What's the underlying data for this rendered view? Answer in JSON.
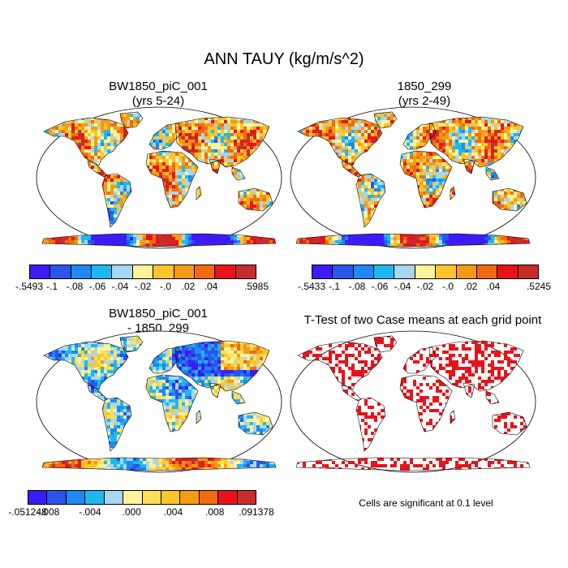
{
  "title": "ANN TAUY (kg/m/s^2)",
  "panels": [
    {
      "id": "case",
      "title_line1": "BW1850_piC_001",
      "title_line2": "(yrs 5-24)",
      "kind": "field",
      "colors": [
        "#3b1cf5",
        "#2a55e8",
        "#1f88f2",
        "#1fb7f0",
        "#a6d6f0",
        "#fcf49a",
        "#fcc52a",
        "#f59a14",
        "#f26a10",
        "#e8131a",
        "#c72d2d"
      ],
      "labels": [
        "-.5493",
        "-.1",
        "-.08",
        "-.06",
        "-.04",
        "-.02",
        "-.0",
        ".02",
        ".04",
        "",
        ".5985"
      ]
    },
    {
      "id": "control",
      "title_line1": "1850_299",
      "title_line2": "(yrs 2-49)",
      "kind": "field",
      "colors": [
        "#3b1cf5",
        "#2a55e8",
        "#1f88f2",
        "#1fb7f0",
        "#a6d6f0",
        "#fcf49a",
        "#fcc52a",
        "#f59a14",
        "#f26a10",
        "#e8131a",
        "#c72d2d"
      ],
      "labels": [
        "-.5433",
        "-.1",
        "-.08",
        "-.06",
        "-.04",
        "-.02",
        "-.0",
        ".02",
        ".04",
        "",
        ".5245"
      ]
    },
    {
      "id": "diff",
      "title_line1": "BW1850_piC_001",
      "title_line2": "- 1850_299",
      "kind": "diff",
      "colors": [
        "#3b1cf5",
        "#2a55e8",
        "#1f88f2",
        "#1fb7f0",
        "#a6d6f0",
        "#fcf49a",
        "#fcdf5a",
        "#fcc52a",
        "#f59a14",
        "#f26a10",
        "#e8131a",
        "#c72d2d"
      ],
      "labels": [
        "-.051248",
        "-.008",
        "",
        "-.004",
        "",
        ".000",
        "",
        ".004",
        "",
        ".008",
        "",
        ".091378"
      ]
    },
    {
      "id": "ttest",
      "title_line1": "T-Test of two Case means at each grid point",
      "title_line2": "",
      "kind": "ttest",
      "colors": [
        "#e8131a"
      ],
      "labels": []
    }
  ],
  "ttest_note": "Cells are significant at 0.1 level"
}
